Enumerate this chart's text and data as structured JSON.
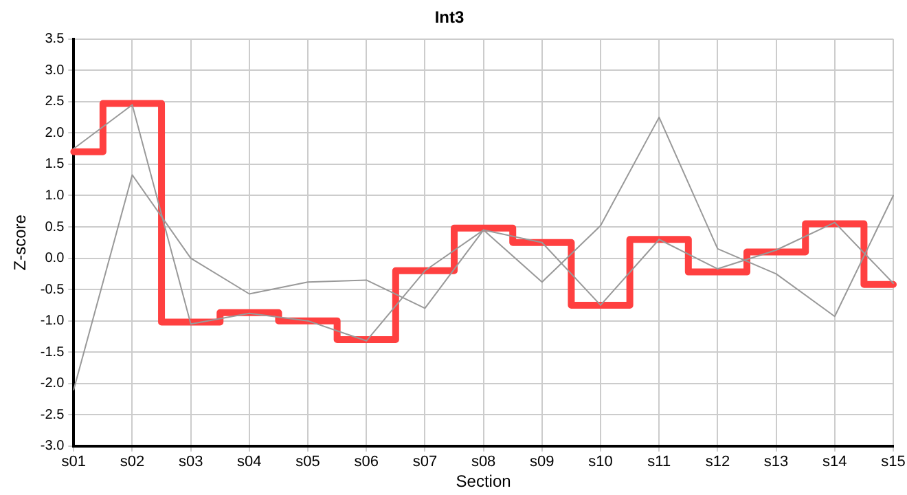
{
  "chart_data": {
    "type": "line",
    "title": "Int3",
    "xlabel": "Section",
    "ylabel": "Z-score",
    "categories": [
      "s01",
      "s02",
      "s03",
      "s04",
      "s05",
      "s06",
      "s07",
      "s08",
      "s09",
      "s10",
      "s11",
      "s12",
      "s13",
      "s14",
      "s15"
    ],
    "series": [
      {
        "type": "line",
        "color": "#999999",
        "values": [
          1.75,
          2.45,
          -1.05,
          -0.88,
          -1.0,
          -1.32,
          -0.2,
          0.45,
          0.25,
          -0.75,
          0.3,
          -0.17,
          0.13,
          0.57,
          -0.4
        ]
      },
      {
        "type": "line",
        "color": "#999999",
        "values": [
          -2.1,
          1.33,
          0.0,
          -0.57,
          -0.38,
          -0.35,
          -0.8,
          0.45,
          -0.38,
          0.52,
          2.25,
          0.15,
          -0.25,
          -0.93,
          1.0
        ]
      },
      {
        "type": "step",
        "color": "#ff4040",
        "values": [
          1.7,
          2.47,
          -1.02,
          -0.87,
          -1.0,
          -1.3,
          -0.2,
          0.48,
          0.25,
          -0.75,
          0.3,
          -0.22,
          0.1,
          0.55,
          -0.42
        ]
      }
    ],
    "ylim": [
      -3,
      3.5
    ],
    "yticks": [
      {
        "value": -3,
        "label": "-3.0"
      },
      {
        "value": -2.5,
        "label": "-2.5"
      },
      {
        "value": -2,
        "label": "-2.0"
      },
      {
        "value": -1.5,
        "label": "-1.5"
      },
      {
        "value": -1,
        "label": "-1.0"
      },
      {
        "value": -0.5,
        "label": "-0.5"
      },
      {
        "value": 0,
        "label": "0.0"
      },
      {
        "value": 0.5,
        "label": "0.5"
      },
      {
        "value": 1,
        "label": "1.0"
      },
      {
        "value": 1.5,
        "label": "1.5"
      },
      {
        "value": 2,
        "label": "2.0"
      },
      {
        "value": 2.5,
        "label": "2.5"
      },
      {
        "value": 3,
        "label": "3.0"
      },
      {
        "value": 3.5,
        "label": "3.5"
      }
    ],
    "grid": true,
    "legend": false,
    "marker": "none"
  }
}
